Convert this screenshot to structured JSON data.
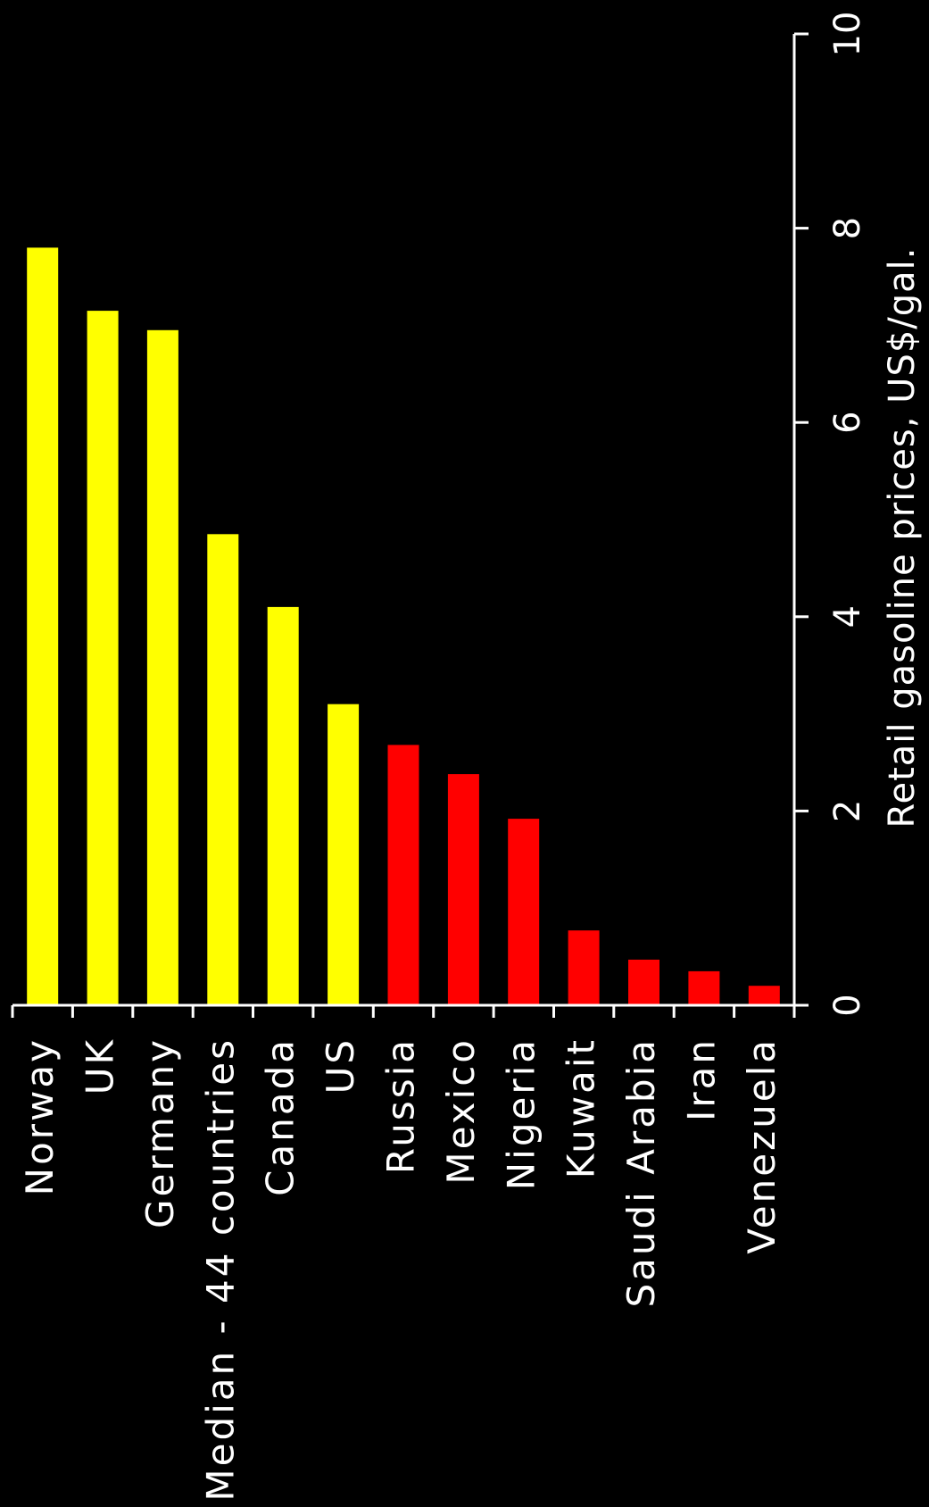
{
  "chart_data": {
    "type": "bar",
    "orientation": "vertical",
    "rotated_view": "90deg-counterclockwise",
    "title": "",
    "xlabel": "",
    "ylabel": "Retail gasoline prices, US$/gal.",
    "ylim": [
      0,
      10
    ],
    "yticks": [
      0,
      2,
      4,
      6,
      8,
      10
    ],
    "grid": false,
    "legend": "none",
    "categories": [
      "Norway",
      "UK",
      "Germany",
      "Median - 44 countries",
      "Canada",
      "US",
      "Russia",
      "Mexico",
      "Nigeria",
      "Kuwait",
      "Saudi Arabia",
      "Iran",
      "Venezuela"
    ],
    "values": [
      7.8,
      7.15,
      6.95,
      4.85,
      4.1,
      3.1,
      2.68,
      2.38,
      1.92,
      0.77,
      0.47,
      0.35,
      0.2
    ],
    "bar_colors": [
      "#ffff00",
      "#ffff00",
      "#ffff00",
      "#ffff00",
      "#ffff00",
      "#ffff00",
      "#ff0000",
      "#ff0000",
      "#ff0000",
      "#ff0000",
      "#ff0000",
      "#ff0000",
      "#ff0000"
    ]
  },
  "colors": {
    "background": "#000000",
    "axis": "#ffffff",
    "text": "#ffffff"
  }
}
